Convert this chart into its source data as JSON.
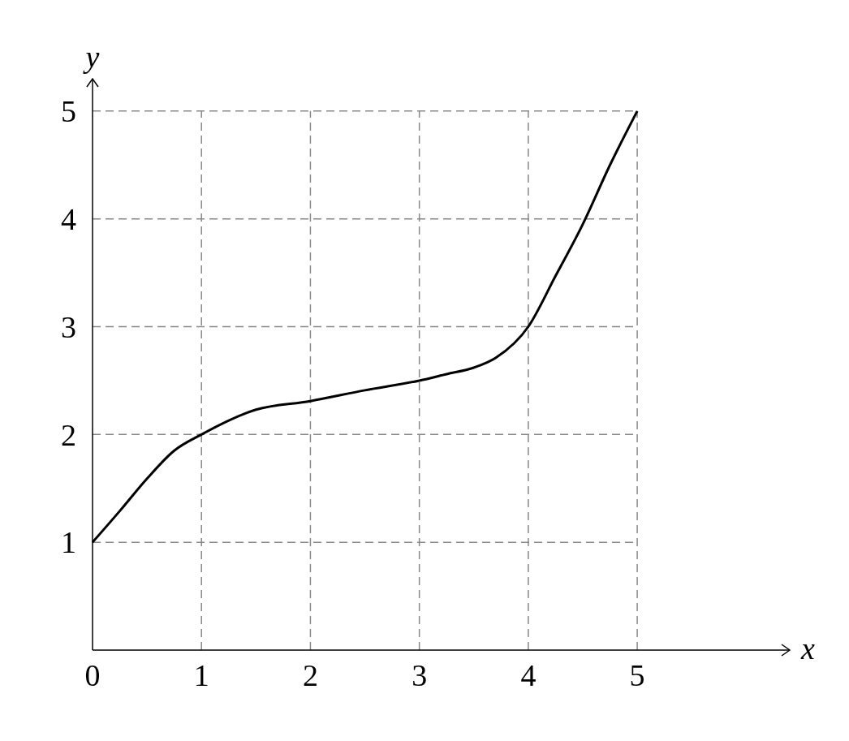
{
  "chart_data": {
    "type": "line",
    "xlabel": "x",
    "ylabel": "y",
    "xlim": [
      0,
      6.4
    ],
    "ylim": [
      0,
      5.3
    ],
    "xticks": [
      0,
      1,
      2,
      3,
      4,
      5
    ],
    "yticks": [
      1,
      2,
      3,
      4,
      5
    ],
    "grid": true,
    "line_style": "solid",
    "marker": "none",
    "series": [
      {
        "color": "#000000",
        "x": [
          0,
          0.25,
          0.5,
          0.75,
          1,
          1.5,
          2,
          2.5,
          3,
          3.25,
          3.5,
          3.7,
          4,
          4.25,
          4.5,
          4.75,
          5
        ],
        "values": [
          1,
          1.29,
          1.59,
          1.85,
          2,
          2.23,
          2.31,
          2.41,
          2.5,
          2.56,
          2.62,
          2.71,
          3,
          3.47,
          3.95,
          4.5,
          5
        ]
      }
    ]
  }
}
